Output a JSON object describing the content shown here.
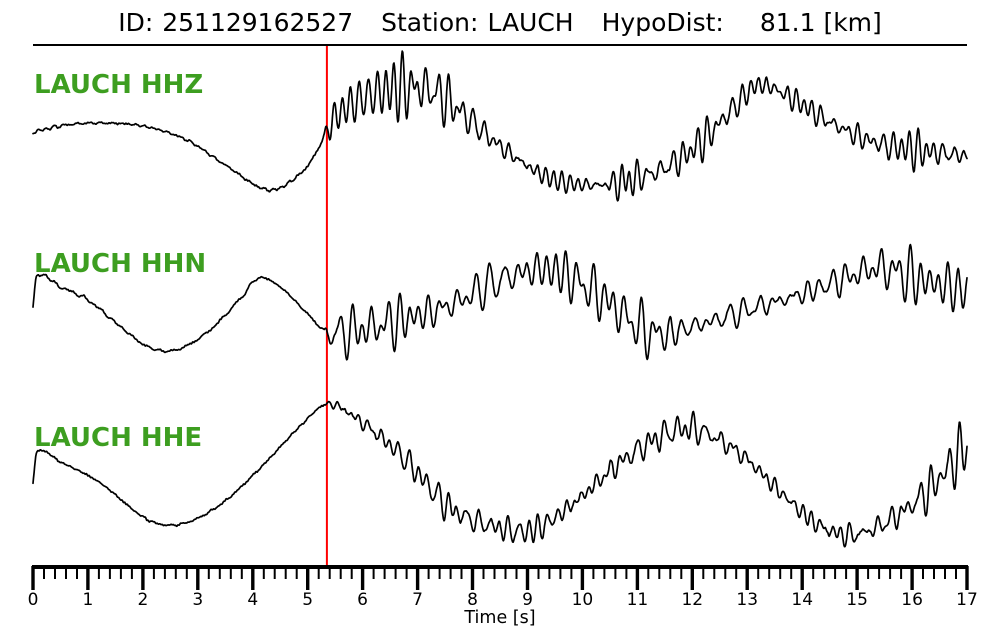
{
  "header": {
    "id_label": "ID:",
    "id_value": "251129162527",
    "station_label": "Station:",
    "station_value": "LAUCH",
    "hypodist_label": "HypoDist:",
    "hypodist_value": "81.1 [km]"
  },
  "colors": {
    "background": "#ffffff",
    "trace": "#000000",
    "axis": "#000000",
    "pick_line": "#ff0000",
    "label_green": "#3d9e20"
  },
  "chart_data": {
    "type": "line",
    "title": "ID: 251129162527   Station: LAUCH   HypoDist:   81.1 [km]",
    "xlabel": "Time [s]",
    "xlim": [
      0,
      17
    ],
    "x_major_tick_step": 1,
    "x_minor_tick_step": 0.2,
    "x_tick_labels": [
      "0",
      "1",
      "2",
      "3",
      "4",
      "5",
      "6",
      "7",
      "8",
      "9",
      "10",
      "11",
      "12",
      "13",
      "14",
      "15",
      "16",
      "17"
    ],
    "grid": false,
    "legend_position": "none",
    "pick_time_s": 5.35,
    "pick_color": "#ff0000",
    "sample_interval_s": 0.01,
    "series": [
      {
        "name": "LAUCH HHZ",
        "seed": 11,
        "noise_freq_range_hz": [
          4.0,
          9.5
        ],
        "carrier": [
          [
            0,
            -2
          ],
          [
            0.6,
            5
          ],
          [
            1.2,
            7
          ],
          [
            2.0,
            4
          ],
          [
            2.8,
            -10
          ],
          [
            3.5,
            -35
          ],
          [
            4.3,
            -60
          ],
          [
            4.9,
            -42
          ],
          [
            5.2,
            -18
          ],
          [
            5.35,
            0
          ],
          [
            5.6,
            18
          ],
          [
            6.1,
            34
          ],
          [
            6.7,
            42
          ],
          [
            7.3,
            38
          ],
          [
            8.0,
            8
          ],
          [
            8.5,
            -16
          ],
          [
            9.4,
            -48
          ],
          [
            10.3,
            -55
          ],
          [
            11.0,
            -48
          ],
          [
            11.6,
            -35
          ],
          [
            12.2,
            -10
          ],
          [
            12.8,
            25
          ],
          [
            13.2,
            45
          ],
          [
            13.8,
            32
          ],
          [
            14.5,
            8
          ],
          [
            15.3,
            -12
          ],
          [
            16.1,
            -20
          ],
          [
            17,
            -26
          ]
        ],
        "noise_envelope": [
          [
            0,
            1.4
          ],
          [
            5.28,
            1.4
          ],
          [
            5.42,
            16
          ],
          [
            5.8,
            24
          ],
          [
            6.4,
            30
          ],
          [
            7.2,
            28
          ],
          [
            8.0,
            18
          ],
          [
            8.8,
            13
          ],
          [
            9.6,
            10
          ],
          [
            10.3,
            12
          ],
          [
            10.78,
            42
          ],
          [
            11.1,
            16
          ],
          [
            11.8,
            13
          ],
          [
            12.6,
            16
          ],
          [
            13.3,
            19
          ],
          [
            14.2,
            12
          ],
          [
            15.0,
            14
          ],
          [
            15.8,
            16
          ],
          [
            16.5,
            14
          ],
          [
            17,
            11
          ]
        ]
      },
      {
        "name": "LAUCH HHN",
        "seed": 23,
        "noise_freq_range_hz": [
          3.2,
          8.5
        ],
        "carrier": [
          [
            0,
            -2
          ],
          [
            0.07,
            29
          ],
          [
            0.5,
            18
          ],
          [
            1.0,
            5
          ],
          [
            1.6,
            -22
          ],
          [
            2.1,
            -42
          ],
          [
            2.6,
            -45
          ],
          [
            3.2,
            -26
          ],
          [
            3.8,
            8
          ],
          [
            4.1,
            27
          ],
          [
            4.5,
            18
          ],
          [
            5.0,
            -9
          ],
          [
            5.35,
            -27
          ],
          [
            5.8,
            -26
          ],
          [
            6.7,
            -15
          ],
          [
            7.6,
            0
          ],
          [
            8.5,
            25
          ],
          [
            9.4,
            35
          ],
          [
            10.3,
            10
          ],
          [
            11.25,
            -28
          ],
          [
            12.1,
            -20
          ],
          [
            13.0,
            -5
          ],
          [
            14.0,
            11
          ],
          [
            14.8,
            27
          ],
          [
            15.4,
            37
          ],
          [
            16.1,
            26
          ],
          [
            17,
            14
          ]
        ],
        "noise_envelope": [
          [
            0,
            1.4
          ],
          [
            5.3,
            1.4
          ],
          [
            5.45,
            18
          ],
          [
            6.0,
            24
          ],
          [
            6.8,
            22
          ],
          [
            7.6,
            17
          ],
          [
            8.6,
            20
          ],
          [
            9.5,
            26
          ],
          [
            10.4,
            17
          ],
          [
            11.3,
            32
          ],
          [
            12.0,
            17
          ],
          [
            13.0,
            13
          ],
          [
            14.0,
            16
          ],
          [
            15.0,
            20
          ],
          [
            15.8,
            22
          ],
          [
            16.5,
            30
          ],
          [
            17,
            26
          ]
        ]
      },
      {
        "name": "LAUCH HHE",
        "seed": 37,
        "noise_freq_range_hz": [
          3.0,
          8.0
        ],
        "carrier": [
          [
            0,
            -13
          ],
          [
            0.07,
            18
          ],
          [
            0.5,
            8
          ],
          [
            1.2,
            -12
          ],
          [
            2.1,
            -50
          ],
          [
            2.7,
            -54
          ],
          [
            3.4,
            -35
          ],
          [
            4.1,
            0
          ],
          [
            4.9,
            46
          ],
          [
            5.35,
            66
          ],
          [
            5.8,
            55
          ],
          [
            6.7,
            15
          ],
          [
            7.6,
            -38
          ],
          [
            8.5,
            -58
          ],
          [
            9.1,
            -60
          ],
          [
            9.8,
            -35
          ],
          [
            10.7,
            8
          ],
          [
            11.6,
            38
          ],
          [
            12.1,
            40
          ],
          [
            12.9,
            15
          ],
          [
            13.6,
            -22
          ],
          [
            14.3,
            -55
          ],
          [
            14.9,
            -65
          ],
          [
            15.6,
            -50
          ],
          [
            16.3,
            -20
          ],
          [
            17,
            25
          ]
        ],
        "noise_envelope": [
          [
            0,
            1.0
          ],
          [
            5.3,
            1.0
          ],
          [
            5.5,
            8
          ],
          [
            6.5,
            10
          ],
          [
            7.5,
            12
          ],
          [
            8.5,
            12
          ],
          [
            9.5,
            13
          ],
          [
            10.5,
            14
          ],
          [
            11.5,
            16
          ],
          [
            12.3,
            14
          ],
          [
            13.1,
            11
          ],
          [
            14.0,
            14
          ],
          [
            15.0,
            12
          ],
          [
            15.8,
            13
          ],
          [
            16.5,
            18
          ],
          [
            17,
            22
          ]
        ]
      }
    ]
  }
}
